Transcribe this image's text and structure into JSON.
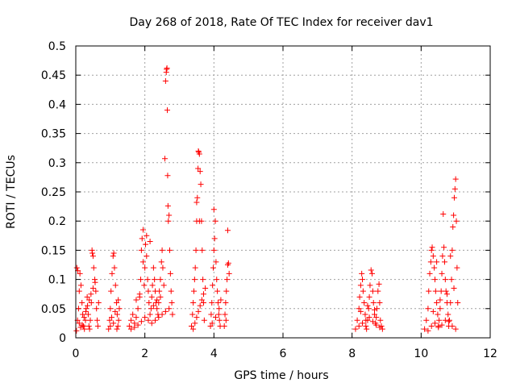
{
  "chart_data": {
    "type": "scatter",
    "title": "Day 268 of 2018, Rate Of TEC Index for receiver dav1",
    "xlabel": "GPS time / hours",
    "ylabel": "ROTI / TECUs",
    "xlim": [
      0,
      12
    ],
    "ylim": [
      0,
      0.5
    ],
    "x_ticks": [
      0,
      2,
      4,
      6,
      8,
      10,
      12
    ],
    "x_tick_labels": [
      "0",
      "2",
      "4",
      "6",
      "8",
      "10",
      "12"
    ],
    "y_ticks": [
      0,
      0.05,
      0.1,
      0.15,
      0.2,
      0.25,
      0.3,
      0.35,
      0.4,
      0.45,
      0.5
    ],
    "y_tick_labels": [
      "0",
      "0.05",
      "0.1",
      "0.15",
      "0.2",
      "0.25",
      "0.3",
      "0.35",
      "0.4",
      "0.45",
      "0.5"
    ],
    "grid": true,
    "marker": "+",
    "color": "#ff0000",
    "series": [
      {
        "name": "ROTI",
        "points": [
          [
            0.02,
            0.012
          ],
          [
            0.05,
            0.03
          ],
          [
            0.08,
            0.05
          ],
          [
            0.1,
            0.08
          ],
          [
            0.12,
            0.11
          ],
          [
            0.03,
            0.12
          ],
          [
            0.06,
            0.115
          ],
          [
            0.15,
            0.09
          ],
          [
            0.18,
            0.06
          ],
          [
            0.2,
            0.04
          ],
          [
            0.22,
            0.02
          ],
          [
            0.25,
            0.015
          ],
          [
            0.28,
            0.03
          ],
          [
            0.3,
            0.05
          ],
          [
            0.33,
            0.07
          ],
          [
            0.36,
            0.04
          ],
          [
            0.38,
            0.02
          ],
          [
            0.4,
            0.015
          ],
          [
            0.42,
            0.03
          ],
          [
            0.45,
            0.06
          ],
          [
            0.47,
            0.15
          ],
          [
            0.48,
            0.145
          ],
          [
            0.5,
            0.14
          ],
          [
            0.52,
            0.12
          ],
          [
            0.55,
            0.1
          ],
          [
            0.58,
            0.08
          ],
          [
            0.6,
            0.05
          ],
          [
            0.62,
            0.03
          ],
          [
            0.64,
            0.02
          ],
          [
            0.66,
            0.06
          ],
          [
            0.1,
            0.025
          ],
          [
            0.14,
            0.018
          ],
          [
            0.19,
            0.022
          ],
          [
            0.24,
            0.035
          ],
          [
            0.29,
            0.045
          ],
          [
            0.34,
            0.055
          ],
          [
            0.39,
            0.065
          ],
          [
            0.44,
            0.075
          ],
          [
            0.5,
            0.085
          ],
          [
            0.56,
            0.095
          ],
          [
            0.95,
            0.015
          ],
          [
            0.98,
            0.03
          ],
          [
            1.0,
            0.05
          ],
          [
            1.02,
            0.08
          ],
          [
            1.05,
            0.11
          ],
          [
            1.08,
            0.14
          ],
          [
            1.1,
            0.145
          ],
          [
            1.12,
            0.12
          ],
          [
            1.15,
            0.09
          ],
          [
            1.18,
            0.06
          ],
          [
            1.2,
            0.04
          ],
          [
            1.22,
            0.02
          ],
          [
            1.24,
            0.03
          ],
          [
            1.26,
            0.05
          ],
          [
            1.0,
            0.02
          ],
          [
            1.04,
            0.035
          ],
          [
            1.09,
            0.025
          ],
          [
            1.14,
            0.045
          ],
          [
            1.19,
            0.015
          ],
          [
            1.23,
            0.065
          ],
          [
            1.55,
            0.02
          ],
          [
            1.6,
            0.03
          ],
          [
            1.65,
            0.04
          ],
          [
            1.7,
            0.025
          ],
          [
            1.75,
            0.035
          ],
          [
            1.8,
            0.05
          ],
          [
            1.85,
            0.07
          ],
          [
            1.88,
            0.1
          ],
          [
            1.9,
            0.15
          ],
          [
            1.92,
            0.17
          ],
          [
            1.95,
            0.13
          ],
          [
            1.98,
            0.09
          ],
          [
            2.0,
            0.12
          ],
          [
            2.02,
            0.16
          ],
          [
            2.05,
            0.14
          ],
          [
            2.08,
            0.1
          ],
          [
            2.1,
            0.08
          ],
          [
            2.12,
            0.06
          ],
          [
            2.15,
            0.04
          ],
          [
            2.18,
            0.05
          ],
          [
            2.2,
            0.07
          ],
          [
            2.22,
            0.09
          ],
          [
            2.25,
            0.12
          ],
          [
            2.28,
            0.1
          ],
          [
            2.3,
            0.08
          ],
          [
            2.32,
            0.06
          ],
          [
            2.35,
            0.05
          ],
          [
            2.38,
            0.04
          ],
          [
            2.4,
            0.06
          ],
          [
            2.42,
            0.08
          ],
          [
            2.45,
            0.1
          ],
          [
            2.48,
            0.13
          ],
          [
            2.5,
            0.15
          ],
          [
            2.52,
            0.12
          ],
          [
            2.55,
            0.09
          ],
          [
            2.58,
            0.307
          ],
          [
            2.6,
            0.44
          ],
          [
            2.62,
            0.455
          ],
          [
            2.63,
            0.46
          ],
          [
            2.64,
            0.462
          ],
          [
            2.65,
            0.39
          ],
          [
            2.66,
            0.278
          ],
          [
            2.67,
            0.226
          ],
          [
            2.68,
            0.2
          ],
          [
            2.7,
            0.21
          ],
          [
            2.72,
            0.15
          ],
          [
            2.74,
            0.11
          ],
          [
            2.76,
            0.08
          ],
          [
            2.78,
            0.06
          ],
          [
            2.8,
            0.04
          ],
          [
            1.6,
            0.015
          ],
          [
            1.7,
            0.018
          ],
          [
            1.8,
            0.022
          ],
          [
            1.9,
            0.028
          ],
          [
            2.0,
            0.035
          ],
          [
            2.1,
            0.03
          ],
          [
            2.2,
            0.025
          ],
          [
            2.3,
            0.03
          ],
          [
            2.4,
            0.035
          ],
          [
            2.5,
            0.04
          ],
          [
            2.6,
            0.045
          ],
          [
            2.7,
            0.05
          ],
          [
            1.95,
            0.185
          ],
          [
            2.05,
            0.175
          ],
          [
            2.15,
            0.165
          ],
          [
            1.75,
            0.065
          ],
          [
            1.85,
            0.075
          ],
          [
            2.25,
            0.055
          ],
          [
            2.35,
            0.065
          ],
          [
            2.45,
            0.07
          ],
          [
            3.35,
            0.02
          ],
          [
            3.38,
            0.04
          ],
          [
            3.4,
            0.06
          ],
          [
            3.42,
            0.08
          ],
          [
            3.44,
            0.1
          ],
          [
            3.46,
            0.12
          ],
          [
            3.48,
            0.15
          ],
          [
            3.5,
            0.2
          ],
          [
            3.52,
            0.24
          ],
          [
            3.54,
            0.29
          ],
          [
            3.55,
            0.32
          ],
          [
            3.56,
            0.318
          ],
          [
            3.58,
            0.315
          ],
          [
            3.6,
            0.285
          ],
          [
            3.62,
            0.263
          ],
          [
            3.64,
            0.2
          ],
          [
            3.66,
            0.15
          ],
          [
            3.68,
            0.1
          ],
          [
            3.7,
            0.06
          ],
          [
            3.72,
            0.03
          ],
          [
            3.4,
            0.015
          ],
          [
            3.45,
            0.025
          ],
          [
            3.5,
            0.035
          ],
          [
            3.55,
            0.045
          ],
          [
            3.6,
            0.055
          ],
          [
            3.65,
            0.065
          ],
          [
            3.7,
            0.075
          ],
          [
            3.75,
            0.085
          ],
          [
            3.5,
            0.232
          ],
          [
            3.58,
            0.2
          ],
          [
            3.9,
            0.02
          ],
          [
            3.92,
            0.04
          ],
          [
            3.94,
            0.06
          ],
          [
            3.96,
            0.09
          ],
          [
            3.98,
            0.12
          ],
          [
            4.0,
            0.15
          ],
          [
            4.0,
            0.22
          ],
          [
            4.02,
            0.17
          ],
          [
            4.04,
            0.2
          ],
          [
            4.06,
            0.13
          ],
          [
            4.08,
            0.1
          ],
          [
            4.1,
            0.08
          ],
          [
            4.12,
            0.06
          ],
          [
            4.14,
            0.04
          ],
          [
            4.16,
            0.03
          ],
          [
            4.18,
            0.02
          ],
          [
            3.95,
            0.025
          ],
          [
            4.05,
            0.035
          ],
          [
            4.15,
            0.05
          ],
          [
            4.2,
            0.065
          ],
          [
            4.3,
            0.02
          ],
          [
            4.32,
            0.04
          ],
          [
            4.34,
            0.06
          ],
          [
            4.36,
            0.08
          ],
          [
            4.38,
            0.1
          ],
          [
            4.4,
            0.125
          ],
          [
            4.42,
            0.128
          ],
          [
            4.44,
            0.11
          ],
          [
            4.4,
            0.184
          ],
          [
            4.35,
            0.03
          ],
          [
            8.1,
            0.015
          ],
          [
            8.15,
            0.03
          ],
          [
            8.2,
            0.05
          ],
          [
            8.22,
            0.07
          ],
          [
            8.25,
            0.09
          ],
          [
            8.28,
            0.11
          ],
          [
            8.3,
            0.1
          ],
          [
            8.32,
            0.08
          ],
          [
            8.35,
            0.06
          ],
          [
            8.38,
            0.04
          ],
          [
            8.4,
            0.02
          ],
          [
            8.42,
            0.015
          ],
          [
            8.45,
            0.03
          ],
          [
            8.48,
            0.05
          ],
          [
            8.5,
            0.07
          ],
          [
            8.52,
            0.09
          ],
          [
            8.55,
            0.116
          ],
          [
            8.58,
            0.11
          ],
          [
            8.6,
            0.08
          ],
          [
            8.62,
            0.06
          ],
          [
            8.65,
            0.04
          ],
          [
            8.68,
            0.025
          ],
          [
            8.7,
            0.035
          ],
          [
            8.72,
            0.05
          ],
          [
            8.75,
            0.08
          ],
          [
            8.78,
            0.092
          ],
          [
            8.8,
            0.06
          ],
          [
            8.82,
            0.03
          ],
          [
            8.85,
            0.02
          ],
          [
            8.88,
            0.015
          ],
          [
            8.2,
            0.02
          ],
          [
            8.3,
            0.025
          ],
          [
            8.4,
            0.03
          ],
          [
            8.5,
            0.035
          ],
          [
            8.6,
            0.028
          ],
          [
            8.7,
            0.022
          ],
          [
            8.8,
            0.018
          ],
          [
            8.25,
            0.045
          ],
          [
            8.45,
            0.055
          ],
          [
            8.65,
            0.048
          ],
          [
            10.1,
            0.015
          ],
          [
            10.15,
            0.03
          ],
          [
            10.2,
            0.05
          ],
          [
            10.22,
            0.08
          ],
          [
            10.25,
            0.11
          ],
          [
            10.28,
            0.13
          ],
          [
            10.3,
            0.15
          ],
          [
            10.32,
            0.155
          ],
          [
            10.35,
            0.14
          ],
          [
            10.38,
            0.12
          ],
          [
            10.4,
            0.1
          ],
          [
            10.42,
            0.08
          ],
          [
            10.45,
            0.06
          ],
          [
            10.48,
            0.04
          ],
          [
            10.5,
            0.02
          ],
          [
            10.52,
            0.03
          ],
          [
            10.55,
            0.05
          ],
          [
            10.58,
            0.08
          ],
          [
            10.6,
            0.11
          ],
          [
            10.62,
            0.14
          ],
          [
            10.64,
            0.212
          ],
          [
            10.66,
            0.155
          ],
          [
            10.68,
            0.13
          ],
          [
            10.7,
            0.1
          ],
          [
            10.72,
            0.08
          ],
          [
            10.75,
            0.06
          ],
          [
            10.78,
            0.04
          ],
          [
            10.8,
            0.02
          ],
          [
            10.82,
            0.03
          ],
          [
            10.85,
            0.06
          ],
          [
            10.88,
            0.1
          ],
          [
            10.9,
            0.15
          ],
          [
            10.92,
            0.19
          ],
          [
            10.94,
            0.21
          ],
          [
            10.96,
            0.24
          ],
          [
            10.98,
            0.255
          ],
          [
            11.0,
            0.272
          ],
          [
            11.02,
            0.2
          ],
          [
            11.04,
            0.12
          ],
          [
            11.06,
            0.06
          ],
          [
            10.2,
            0.012
          ],
          [
            10.3,
            0.02
          ],
          [
            10.4,
            0.025
          ],
          [
            10.5,
            0.018
          ],
          [
            10.6,
            0.022
          ],
          [
            10.7,
            0.03
          ],
          [
            10.8,
            0.028
          ],
          [
            10.9,
            0.02
          ],
          [
            11.0,
            0.015
          ],
          [
            10.35,
            0.045
          ],
          [
            10.55,
            0.065
          ],
          [
            10.75,
            0.075
          ],
          [
            10.95,
            0.085
          ],
          [
            10.45,
            0.13
          ],
          [
            10.85,
            0.14
          ]
        ]
      }
    ]
  }
}
